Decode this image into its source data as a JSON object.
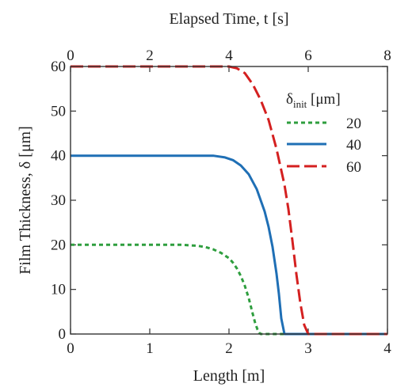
{
  "chart_data": {
    "type": "line",
    "xlabel": "Length [m]",
    "x2label": "Elapsed Time, t [s]",
    "ylabel": "Film Thickness, δ [μm]",
    "xlim": [
      0,
      4
    ],
    "x2lim": [
      0,
      8
    ],
    "ylim": [
      0,
      60
    ],
    "x_ticks": [
      "0",
      "1",
      "2",
      "3",
      "4"
    ],
    "x2_ticks": [
      "0",
      "2",
      "4",
      "6",
      "8"
    ],
    "y_ticks": [
      "0",
      "10",
      "20",
      "30",
      "40",
      "50",
      "60"
    ],
    "grid": false,
    "legend": {
      "placement": "top-right",
      "title_symbol": "δ",
      "title_sub": "init",
      "title_unit": "[μm]"
    },
    "series": [
      {
        "name": "20",
        "color": "#2e9e3e",
        "dash": "dotted",
        "x": [
          0,
          0.4,
          0.8,
          1.2,
          1.4,
          1.6,
          1.7,
          1.8,
          1.9,
          2.0,
          2.05,
          2.1,
          2.15,
          2.2,
          2.25,
          2.3,
          2.33,
          2.36,
          2.38,
          2.4,
          4.0
        ],
        "y": [
          20,
          20,
          20,
          20,
          20,
          19.8,
          19.5,
          19.0,
          18.2,
          17.0,
          16.0,
          14.7,
          13.0,
          10.8,
          8.0,
          4.5,
          2.5,
          1.0,
          0.3,
          0,
          0
        ]
      },
      {
        "name": "40",
        "color": "#1f6fb5",
        "dash": "solid",
        "x": [
          0,
          0.5,
          1.0,
          1.5,
          1.8,
          1.95,
          2.05,
          2.15,
          2.25,
          2.35,
          2.45,
          2.5,
          2.55,
          2.6,
          2.63,
          2.66,
          2.7,
          4.0
        ],
        "y": [
          40,
          40,
          40,
          40,
          40,
          39.6,
          39.0,
          37.8,
          35.8,
          32.5,
          27.5,
          24.0,
          19.5,
          13.5,
          9.0,
          3.5,
          0,
          0
        ]
      },
      {
        "name": "60",
        "color": "#d42020",
        "dash": "dashed",
        "x": [
          0,
          0.5,
          1.0,
          1.5,
          1.8,
          2.0,
          2.1,
          2.2,
          2.3,
          2.4,
          2.5,
          2.6,
          2.7,
          2.75,
          2.8,
          2.85,
          2.9,
          2.95,
          3.0,
          4.0
        ],
        "y": [
          60,
          60,
          60,
          60,
          60,
          60,
          59.6,
          58.5,
          56.0,
          52.5,
          48.0,
          41.5,
          33.5,
          28.0,
          21.0,
          13.5,
          7.0,
          2.0,
          0,
          0
        ]
      }
    ]
  }
}
